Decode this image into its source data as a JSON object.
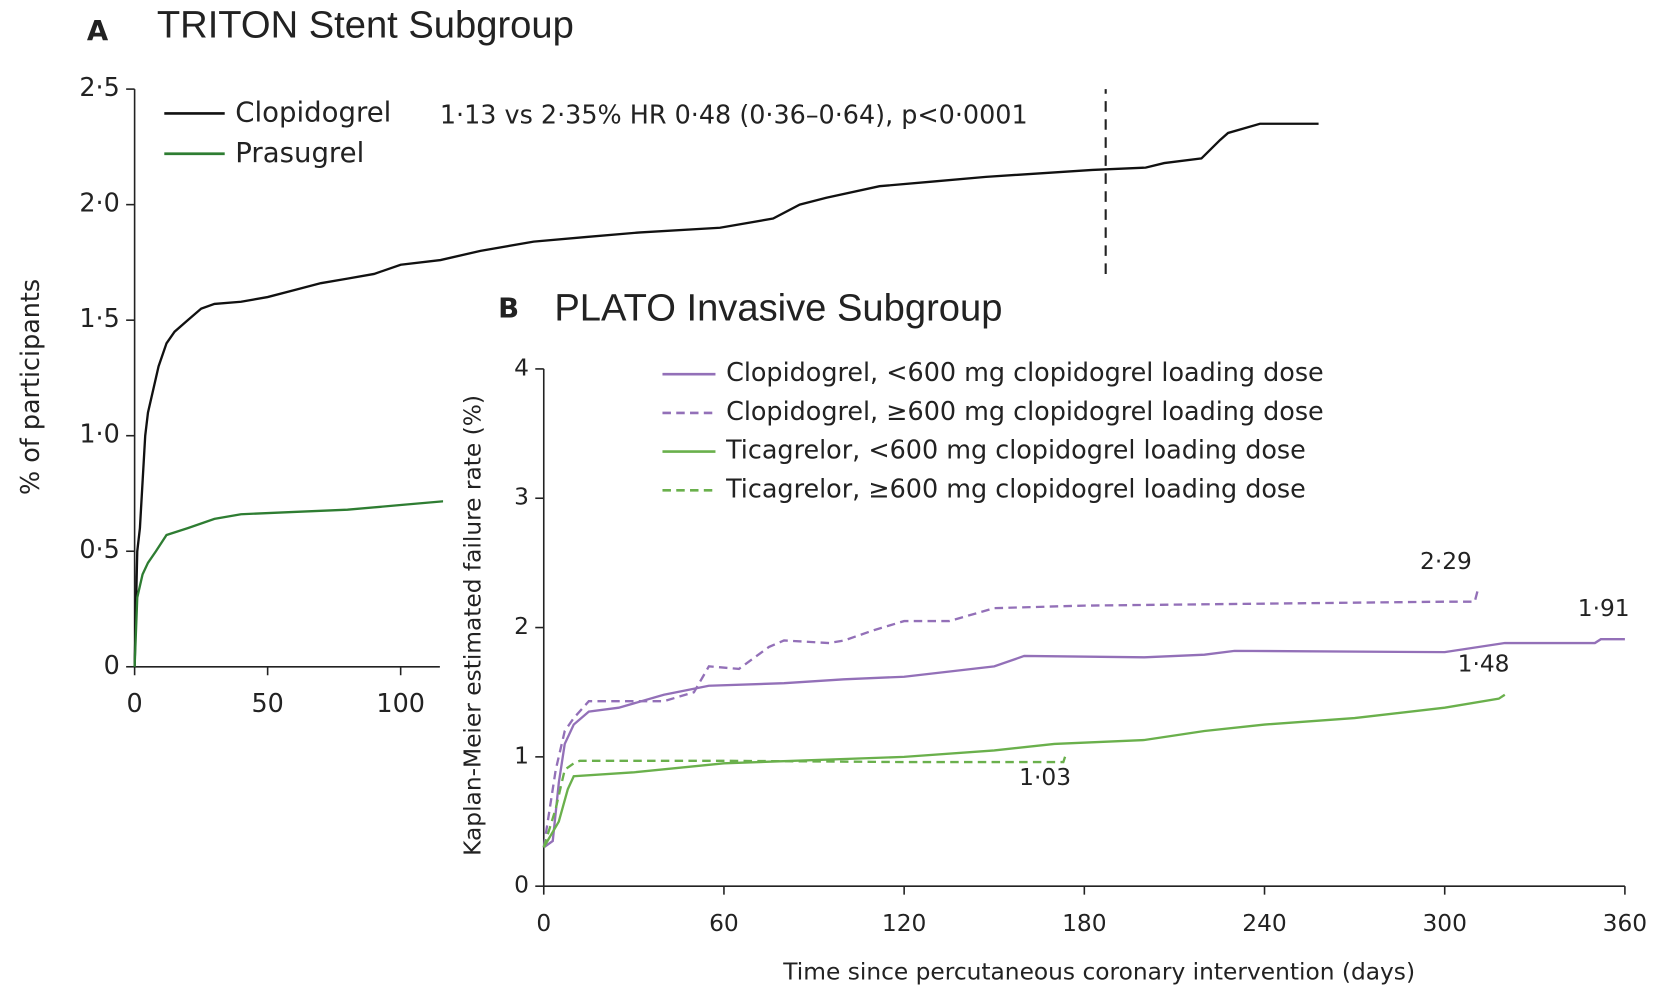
{
  "chart_data": [
    {
      "type": "line",
      "panel": "A",
      "title": "TRITON Stent Subgroup",
      "annotation": "1·13 vs 2·35% HR 0·48 (0·36–0·64), p<0·0001",
      "y_label": "% of participants",
      "xlim": [
        0,
        450
      ],
      "xticks": [
        0,
        50,
        100
      ],
      "ylim": [
        0,
        2.5
      ],
      "yticks": [
        0,
        {
          "value": 0.5,
          "label": "0·5"
        },
        {
          "value": 1,
          "label": "1·0"
        },
        {
          "value": 1.5,
          "label": "1·5"
        },
        {
          "value": 2,
          "label": "2·0"
        },
        {
          "value": 2.5,
          "label": "2·5"
        }
      ],
      "vline": {
        "x": 365,
        "y": [
          1.7,
          2.5
        ]
      },
      "series": [
        {
          "name": "Clopidogrel",
          "color": "#111111",
          "dashed": false,
          "x": [
            0,
            1,
            2,
            3,
            4,
            5,
            7,
            9,
            12,
            15,
            20,
            25,
            30,
            40,
            50,
            60,
            70,
            80,
            90,
            100,
            115,
            130,
            150,
            170,
            190,
            220,
            240,
            250,
            260,
            280,
            300,
            320,
            360,
            380,
            387,
            401,
            408,
            411,
            423,
            445
          ],
          "values": [
            0,
            0.5,
            0.6,
            0.8,
            1.0,
            1.1,
            1.2,
            1.3,
            1.4,
            1.45,
            1.5,
            1.55,
            1.57,
            1.58,
            1.6,
            1.63,
            1.66,
            1.68,
            1.7,
            1.74,
            1.76,
            1.8,
            1.84,
            1.86,
            1.88,
            1.9,
            1.94,
            2.0,
            2.03,
            2.08,
            2.1,
            2.12,
            2.15,
            2.16,
            2.18,
            2.2,
            2.28,
            2.31,
            2.35,
            2.35
          ]
        },
        {
          "name": "Prasugrel",
          "color": "#2e7d32",
          "dashed": false,
          "x": [
            0,
            1,
            3,
            5,
            8,
            12,
            20,
            30,
            40,
            60,
            80,
            100,
            120,
            140,
            160
          ],
          "values": [
            0,
            0.3,
            0.4,
            0.45,
            0.5,
            0.57,
            0.6,
            0.64,
            0.66,
            0.67,
            0.68,
            0.7,
            0.72,
            0.74,
            0.76
          ]
        }
      ]
    },
    {
      "type": "line",
      "panel": "B",
      "title": "PLATO Invasive Subgroup",
      "x_label": "Time since percutaneous coronary intervention (days)",
      "y_label": "Kaplan-Meier estimated failure rate (%)",
      "xlim": [
        0,
        360
      ],
      "xticks": [
        0,
        60,
        120,
        180,
        240,
        300,
        360
      ],
      "ylim": [
        0,
        4
      ],
      "yticks": [
        0,
        1,
        2,
        3,
        4
      ],
      "series": [
        {
          "name": "Clopidogrel, <600 mg clopidogrel loading dose",
          "color": "#9370b8",
          "dashed": false,
          "x": [
            0,
            3,
            5,
            7,
            10,
            15,
            25,
            40,
            55,
            80,
            100,
            120,
            150,
            160,
            200,
            220,
            230,
            300,
            320,
            350,
            352,
            360
          ],
          "values": [
            0.3,
            0.35,
            0.8,
            1.1,
            1.25,
            1.35,
            1.38,
            1.48,
            1.55,
            1.57,
            1.6,
            1.62,
            1.7,
            1.78,
            1.77,
            1.79,
            1.82,
            1.81,
            1.88,
            1.88,
            1.91,
            1.91
          ],
          "end_label": {
            "value": 1.91,
            "label": "1·91"
          }
        },
        {
          "name": "Clopidogrel, ≥600 mg clopidogrel loading dose",
          "color": "#9370b8",
          "dashed": true,
          "x": [
            0,
            4,
            7,
            10,
            15,
            40,
            50,
            55,
            65,
            75,
            80,
            95,
            100,
            110,
            120,
            135,
            150,
            180,
            300,
            310,
            311
          ],
          "values": [
            0.3,
            0.9,
            1.2,
            1.3,
            1.43,
            1.43,
            1.5,
            1.7,
            1.68,
            1.85,
            1.9,
            1.88,
            1.9,
            1.98,
            2.05,
            2.05,
            2.15,
            2.17,
            2.2,
            2.2,
            2.29
          ],
          "end_label": {
            "value": 2.29,
            "label": "2·29"
          }
        },
        {
          "name": "Ticagrelor, <600 mg clopidogrel loading dose",
          "color": "#6ab04c",
          "dashed": false,
          "x": [
            0,
            5,
            8,
            10,
            30,
            60,
            120,
            150,
            170,
            200,
            220,
            240,
            270,
            300,
            318,
            320
          ],
          "values": [
            0.3,
            0.5,
            0.75,
            0.85,
            0.88,
            0.95,
            1.0,
            1.05,
            1.1,
            1.13,
            1.2,
            1.25,
            1.3,
            1.38,
            1.45,
            1.48
          ],
          "end_label": {
            "value": 1.48,
            "label": "1·48"
          }
        },
        {
          "name": "Ticagrelor, ≥600 mg clopidogrel loading dose",
          "color": "#6ab04c",
          "dashed": true,
          "x": [
            0,
            4,
            7,
            10,
            12,
            60,
            120,
            173,
            174
          ],
          "values": [
            0.3,
            0.6,
            0.9,
            0.95,
            0.97,
            0.97,
            0.96,
            0.96,
            1.03
          ],
          "end_label": {
            "value": 1.03,
            "label": "1·03"
          }
        }
      ]
    }
  ]
}
